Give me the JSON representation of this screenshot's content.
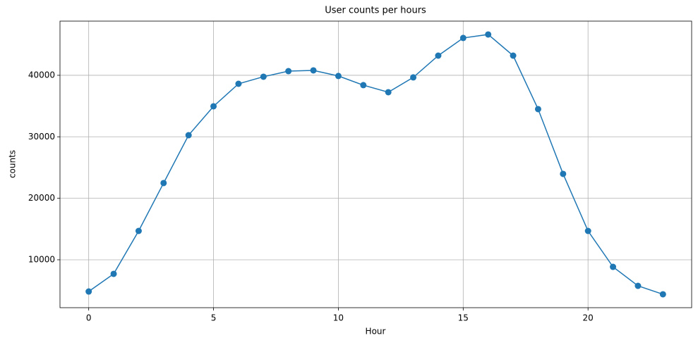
{
  "chart_data": {
    "type": "line",
    "title": "User counts per hours",
    "x_label": "Hour",
    "y_label": "counts",
    "x": [
      0,
      1,
      2,
      3,
      4,
      5,
      6,
      7,
      8,
      9,
      10,
      11,
      12,
      13,
      14,
      15,
      16,
      17,
      18,
      19,
      20,
      21,
      22,
      23
    ],
    "series": [
      {
        "name": "counts",
        "color": "#1f77b4",
        "values": [
          4840,
          7710,
          14690,
          22480,
          30260,
          34960,
          38620,
          39770,
          40680,
          40800,
          39890,
          38400,
          37250,
          39660,
          43200,
          46070,
          46640,
          43200,
          34500,
          23970,
          14690,
          8850,
          5760,
          4390
        ]
      }
    ],
    "xlim": [
      -1.15,
      24.15
    ],
    "xticks": [
      0,
      5,
      10,
      15,
      20
    ],
    "ylim": [
      2210,
      48810
    ],
    "yticks": [
      10000,
      20000,
      30000,
      40000
    ],
    "grid": true,
    "markers": true
  }
}
